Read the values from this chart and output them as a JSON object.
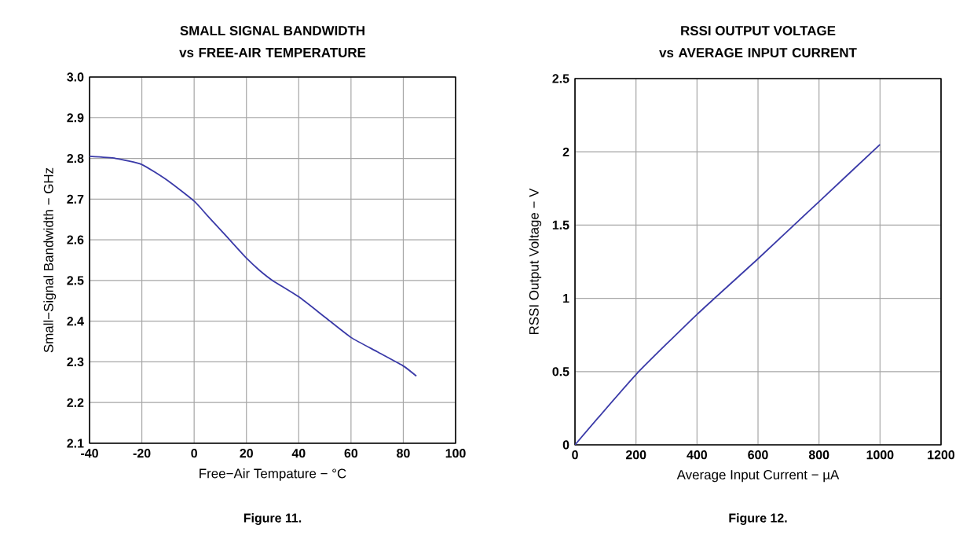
{
  "chart_data": [
    {
      "type": "line",
      "title": "SMALL SIGNAL BANDWIDTH",
      "subtitle": "vs FREE-AIR TEMPERATURE",
      "xlabel": "Free−Air Tempature − °C",
      "ylabel": "Small−Signal Bandwidth − GHz",
      "annotations": [
        "Figure 11."
      ],
      "x": [
        -40,
        -30,
        -20,
        -10,
        0,
        5,
        10,
        15,
        20,
        25,
        30,
        40,
        50,
        60,
        70,
        80,
        85
      ],
      "series": [
        {
          "color": "#3a3aa8",
          "values": [
            2.805,
            2.8,
            2.785,
            2.745,
            2.695,
            2.66,
            2.625,
            2.59,
            2.555,
            2.525,
            2.5,
            2.46,
            2.41,
            2.36,
            2.325,
            2.29,
            2.265
          ]
        }
      ],
      "xlim": [
        -40,
        100
      ],
      "xticks": [
        -40,
        -20,
        0,
        20,
        40,
        60,
        80,
        100
      ],
      "ylim": [
        2.1,
        3.0
      ],
      "yticks": [
        2.1,
        2.2,
        2.3,
        2.4,
        2.5,
        2.6,
        2.7,
        2.8,
        2.9,
        {
          "value": 3,
          "label": "3.0"
        }
      ],
      "grid": true
    },
    {
      "type": "line",
      "title": "RSSI OUTPUT VOLTAGE",
      "subtitle": "vs AVERAGE INPUT CURRENT",
      "xlabel": "Average Input Current − µA",
      "ylabel": "RSSI Output Voltage − V",
      "annotations": [
        "Figure 12."
      ],
      "x": [
        0,
        200,
        400,
        600,
        800,
        1000
      ],
      "series": [
        {
          "color": "#3a3aa8",
          "values": [
            0,
            0.48,
            0.89,
            1.27,
            1.66,
            2.05
          ]
        }
      ],
      "xlim": [
        0,
        1200
      ],
      "xticks": [
        0,
        200,
        400,
        600,
        800,
        1000,
        1200
      ],
      "ylim": [
        0,
        2.5
      ],
      "yticks": [
        0,
        0.5,
        1,
        1.5,
        2,
        2.5
      ],
      "grid": true
    }
  ]
}
